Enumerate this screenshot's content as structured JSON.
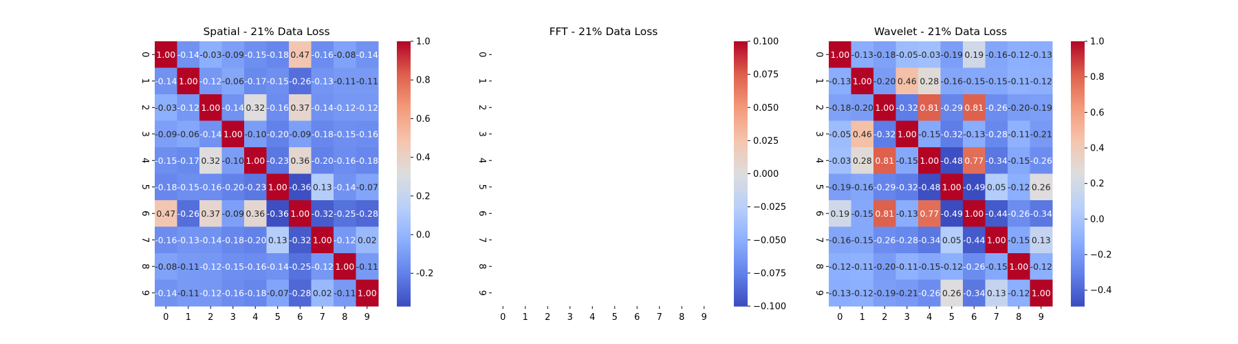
{
  "chart_data": [
    {
      "type": "heatmap",
      "title": "Spatial - 21% Data Loss",
      "x_ticks": [
        "0",
        "1",
        "2",
        "3",
        "4",
        "5",
        "6",
        "7",
        "8",
        "9"
      ],
      "y_ticks": [
        "0",
        "1",
        "2",
        "3",
        "4",
        "5",
        "6",
        "7",
        "8",
        "9"
      ],
      "colormap": "coolwarm",
      "annotated": true,
      "colorbar_range": [
        -0.37,
        1.0
      ],
      "colorbar_ticks": [
        "-0.2",
        "0.0",
        "0.2",
        "0.4",
        "0.6",
        "0.8",
        "1.0"
      ],
      "colorbar_tick_values": [
        -0.2,
        0.0,
        0.2,
        0.4,
        0.6,
        0.8,
        1.0
      ],
      "values": [
        [
          1.0,
          -0.14,
          -0.03,
          -0.09,
          -0.15,
          -0.18,
          0.47,
          -0.16,
          -0.08,
          -0.14
        ],
        [
          -0.14,
          1.0,
          -0.12,
          -0.06,
          -0.17,
          -0.15,
          -0.26,
          -0.13,
          -0.11,
          -0.11
        ],
        [
          -0.03,
          -0.12,
          1.0,
          -0.14,
          0.32,
          -0.16,
          0.37,
          -0.14,
          -0.12,
          -0.12
        ],
        [
          -0.09,
          -0.06,
          -0.14,
          1.0,
          -0.1,
          -0.2,
          -0.09,
          -0.18,
          -0.15,
          -0.16
        ],
        [
          -0.15,
          -0.17,
          0.32,
          -0.1,
          1.0,
          -0.23,
          0.36,
          -0.2,
          -0.16,
          -0.18
        ],
        [
          -0.18,
          -0.15,
          -0.16,
          -0.2,
          -0.23,
          1.0,
          -0.36,
          0.13,
          -0.14,
          -0.07
        ],
        [
          0.47,
          -0.26,
          0.37,
          -0.09,
          0.36,
          -0.36,
          1.0,
          -0.32,
          -0.25,
          -0.28
        ],
        [
          -0.16,
          -0.13,
          -0.14,
          -0.18,
          -0.2,
          0.13,
          -0.32,
          1.0,
          -0.12,
          0.02
        ],
        [
          -0.08,
          -0.11,
          -0.12,
          -0.15,
          -0.16,
          -0.14,
          -0.25,
          -0.12,
          1.0,
          -0.11
        ],
        [
          -0.14,
          -0.11,
          -0.12,
          -0.16,
          -0.18,
          -0.07,
          -0.28,
          0.02,
          -0.11,
          1.0
        ]
      ]
    },
    {
      "type": "heatmap",
      "title": "FFT - 21% Data Loss",
      "x_ticks": [
        "0",
        "1",
        "2",
        "3",
        "4",
        "5",
        "6",
        "7",
        "8",
        "9"
      ],
      "y_ticks": [
        "0",
        "1",
        "2",
        "3",
        "4",
        "5",
        "6",
        "7",
        "8",
        "9"
      ],
      "colormap": "coolwarm",
      "annotated": false,
      "colorbar_range": [
        -0.1,
        0.1
      ],
      "colorbar_ticks": [
        "−0.100",
        "−0.075",
        "−0.050",
        "−0.025",
        "0.000",
        "0.025",
        "0.050",
        "0.075",
        "0.100"
      ],
      "colorbar_tick_values": [
        -0.1,
        -0.075,
        -0.05,
        -0.025,
        0.0,
        0.025,
        0.05,
        0.075,
        0.1
      ],
      "values": []
    },
    {
      "type": "heatmap",
      "title": "Wavelet - 21% Data Loss",
      "x_ticks": [
        "0",
        "1",
        "2",
        "3",
        "4",
        "5",
        "6",
        "7",
        "8",
        "9"
      ],
      "y_ticks": [
        "0",
        "1",
        "2",
        "3",
        "4",
        "5",
        "6",
        "7",
        "8",
        "9"
      ],
      "colormap": "coolwarm",
      "annotated": true,
      "colorbar_range": [
        -0.49,
        1.0
      ],
      "colorbar_ticks": [
        "−0.4",
        "−0.2",
        "0.0",
        "0.2",
        "0.4",
        "0.6",
        "0.8",
        "1.0"
      ],
      "colorbar_tick_values": [
        -0.4,
        -0.2,
        0.0,
        0.2,
        0.4,
        0.6,
        0.8,
        1.0
      ],
      "values": [
        [
          1.0,
          -0.13,
          -0.18,
          -0.05,
          -0.03,
          -0.19,
          0.19,
          -0.16,
          -0.12,
          -0.13
        ],
        [
          -0.13,
          1.0,
          -0.2,
          0.46,
          0.28,
          -0.16,
          -0.15,
          -0.15,
          -0.11,
          -0.12
        ],
        [
          -0.18,
          -0.2,
          1.0,
          -0.32,
          0.81,
          -0.29,
          0.81,
          -0.26,
          -0.2,
          -0.19
        ],
        [
          -0.05,
          0.46,
          -0.32,
          1.0,
          -0.15,
          -0.32,
          -0.13,
          -0.28,
          -0.11,
          -0.21
        ],
        [
          -0.03,
          0.28,
          0.81,
          -0.15,
          1.0,
          -0.48,
          0.77,
          -0.34,
          -0.15,
          -0.26
        ],
        [
          -0.19,
          -0.16,
          -0.29,
          -0.32,
          -0.48,
          1.0,
          -0.49,
          0.05,
          -0.12,
          0.26
        ],
        [
          0.19,
          -0.15,
          0.81,
          -0.13,
          0.77,
          -0.49,
          1.0,
          -0.44,
          -0.26,
          -0.34
        ],
        [
          -0.16,
          -0.15,
          -0.26,
          -0.28,
          -0.34,
          0.05,
          -0.44,
          1.0,
          -0.15,
          0.13
        ],
        [
          -0.12,
          -0.11,
          -0.2,
          -0.11,
          -0.15,
          -0.12,
          -0.26,
          -0.15,
          1.0,
          -0.12
        ],
        [
          -0.13,
          -0.12,
          -0.19,
          -0.21,
          -0.26,
          0.26,
          -0.34,
          0.13,
          -0.12,
          1.0
        ]
      ]
    }
  ]
}
